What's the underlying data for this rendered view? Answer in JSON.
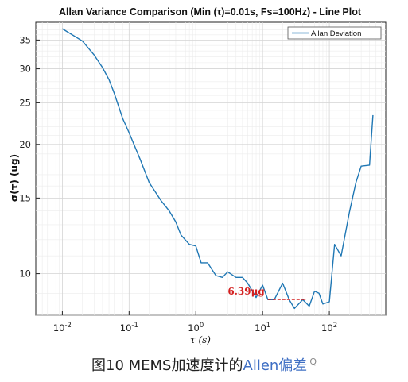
{
  "chart_data": {
    "type": "line",
    "title": "Allan Variance Comparison (Min (τ)=0.01s, Fs=100Hz) - Line Plot",
    "xlabel": "τ (s)",
    "ylabel": "σ(τ) (ug)",
    "xscale": "log",
    "yscale": "log",
    "xlim": [
      0.004,
      700
    ],
    "ylim": [
      8.0,
      38.5
    ],
    "x_ticks": [
      0.01,
      0.1,
      1,
      10,
      100
    ],
    "x_tick_labels": [
      "10-2",
      "10-1",
      "100",
      "101",
      "102"
    ],
    "y_ticks": [
      10,
      15,
      20,
      25,
      30,
      35
    ],
    "y_tick_labels": [
      "10",
      "15",
      "20",
      "25",
      "30",
      "35"
    ],
    "grid": true,
    "legend_position": "top-right",
    "series": [
      {
        "name": "Allan Deviation",
        "color": "#1f77b4",
        "x": [
          0.01,
          0.02,
          0.03,
          0.04,
          0.05,
          0.06,
          0.08,
          0.1,
          0.15,
          0.2,
          0.3,
          0.4,
          0.5,
          0.6,
          0.8,
          1.0,
          1.2,
          1.5,
          2.0,
          2.5,
          3.0,
          4.0,
          5.0,
          6.0,
          8.0,
          10.0,
          12.0,
          15.0,
          20.0,
          25.0,
          30.0,
          40.0,
          50.0,
          60.0,
          70.0,
          80.0,
          100.0,
          120.0,
          150.0,
          200.0,
          250.0,
          300.0,
          400.0,
          450.0
        ],
        "y": [
          37.2,
          34.8,
          32.3,
          30.2,
          28.3,
          26.3,
          23.0,
          21.3,
          18.3,
          16.3,
          14.8,
          14.0,
          13.2,
          12.3,
          11.7,
          11.6,
          10.6,
          10.6,
          9.9,
          9.8,
          10.1,
          9.8,
          9.8,
          9.5,
          8.8,
          9.4,
          8.7,
          8.7,
          9.5,
          8.7,
          8.3,
          8.7,
          8.4,
          9.1,
          9.0,
          8.5,
          8.6,
          11.7,
          11.0,
          13.9,
          16.3,
          17.8,
          17.9,
          23.4
        ]
      }
    ],
    "annotations": [
      {
        "text": "6.39μg",
        "color": "#d42020",
        "value": 6.39,
        "line_x": [
          12,
          45
        ]
      }
    ]
  },
  "caption": {
    "prefix": "图10 MEMS加速度计的",
    "link": "Allen偏差",
    "search_icon_glyph": "Q"
  }
}
